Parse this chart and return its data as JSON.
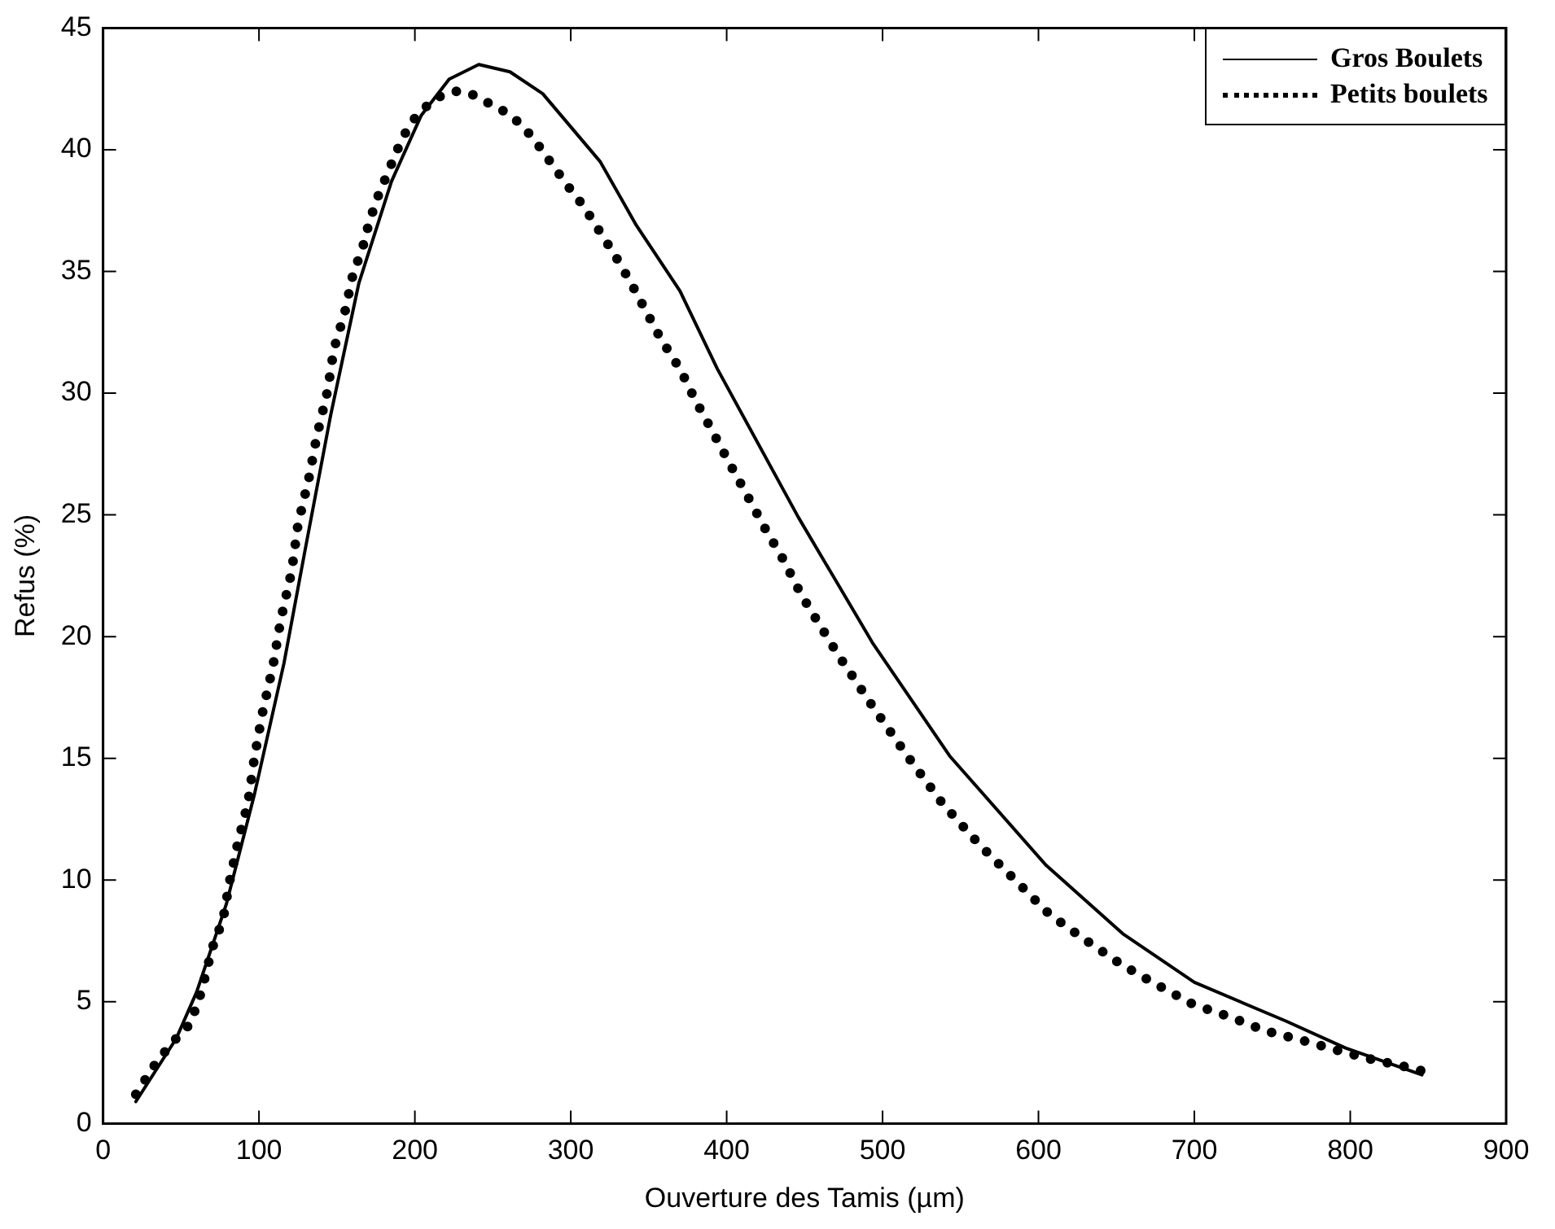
{
  "chart_data": {
    "type": "line",
    "xlabel": "Ouverture des Tamis (µm)",
    "ylabel": "Refus (%)",
    "xlim": [
      0,
      900
    ],
    "xticks": [
      0,
      100,
      200,
      300,
      400,
      500,
      600,
      700,
      800,
      900
    ],
    "ylim": [
      0,
      45
    ],
    "yticks": [
      0,
      5,
      10,
      15,
      20,
      25,
      30,
      35,
      40,
      45
    ],
    "grid": false,
    "legend": "top right",
    "marker": "none",
    "series": [
      {
        "name": "Gros Boulets",
        "color": "#000000",
        "line_style": "solid",
        "x": [
          21,
          47,
          60,
          79,
          97,
          116,
          130,
          146,
          164,
          185,
          204,
          222,
          241,
          261,
          282,
          319,
          342,
          370,
          394,
          446,
          494,
          543,
          605,
          654,
          700,
          759,
          797,
          846
        ],
        "values": [
          0.9,
          3.5,
          5.4,
          9.0,
          13.5,
          18.9,
          23.7,
          29.1,
          34.5,
          38.7,
          41.4,
          42.9,
          43.5,
          43.2,
          42.3,
          39.5,
          36.9,
          34.2,
          31.0,
          24.9,
          19.7,
          15.1,
          10.6,
          7.8,
          5.8,
          4.2,
          3.1,
          2.0
        ]
      },
      {
        "name": "Petits boulets",
        "color": "#000000",
        "line_style": "dotted",
        "x": [
          21,
          33,
          44,
          56,
          63,
          70,
          77,
          81,
          86,
          93,
          97,
          102,
          109,
          114,
          121,
          125,
          132,
          137,
          144,
          148,
          155,
          160,
          167,
          171,
          177,
          183,
          188,
          194,
          200,
          206,
          213,
          220,
          227,
          236,
          244,
          252,
          261,
          269,
          279,
          288,
          297,
          308,
          318,
          328,
          338,
          348,
          358,
          370,
          380,
          392,
          402,
          414,
          425,
          436,
          448,
          471,
          494,
          517,
          539,
          563,
          585,
          607,
          631,
          654,
          676,
          699,
          722,
          746,
          770,
          792,
          816,
          838,
          850
        ],
        "values": [
          1.2,
          2.4,
          3.3,
          4.1,
          5.4,
          7.2,
          8.4,
          9.9,
          11.4,
          13.2,
          15.0,
          16.8,
          18.8,
          20.7,
          22.7,
          24.6,
          26.5,
          28.2,
          30.1,
          31.8,
          33.3,
          34.8,
          36.1,
          37.1,
          38.2,
          39.1,
          39.9,
          40.7,
          41.3,
          41.7,
          42.1,
          42.3,
          42.4,
          42.3,
          42.0,
          41.8,
          41.4,
          41.0,
          40.2,
          39.4,
          38.6,
          37.7,
          36.7,
          35.7,
          34.6,
          33.4,
          32.2,
          31.0,
          29.7,
          28.3,
          27.1,
          25.7,
          24.4,
          23.2,
          21.7,
          19.3,
          17.1,
          15.0,
          13.1,
          11.4,
          10.0,
          8.6,
          7.5,
          6.5,
          5.7,
          4.9,
          4.4,
          3.8,
          3.4,
          3.0,
          2.6,
          2.3,
          2.1
        ]
      }
    ]
  }
}
